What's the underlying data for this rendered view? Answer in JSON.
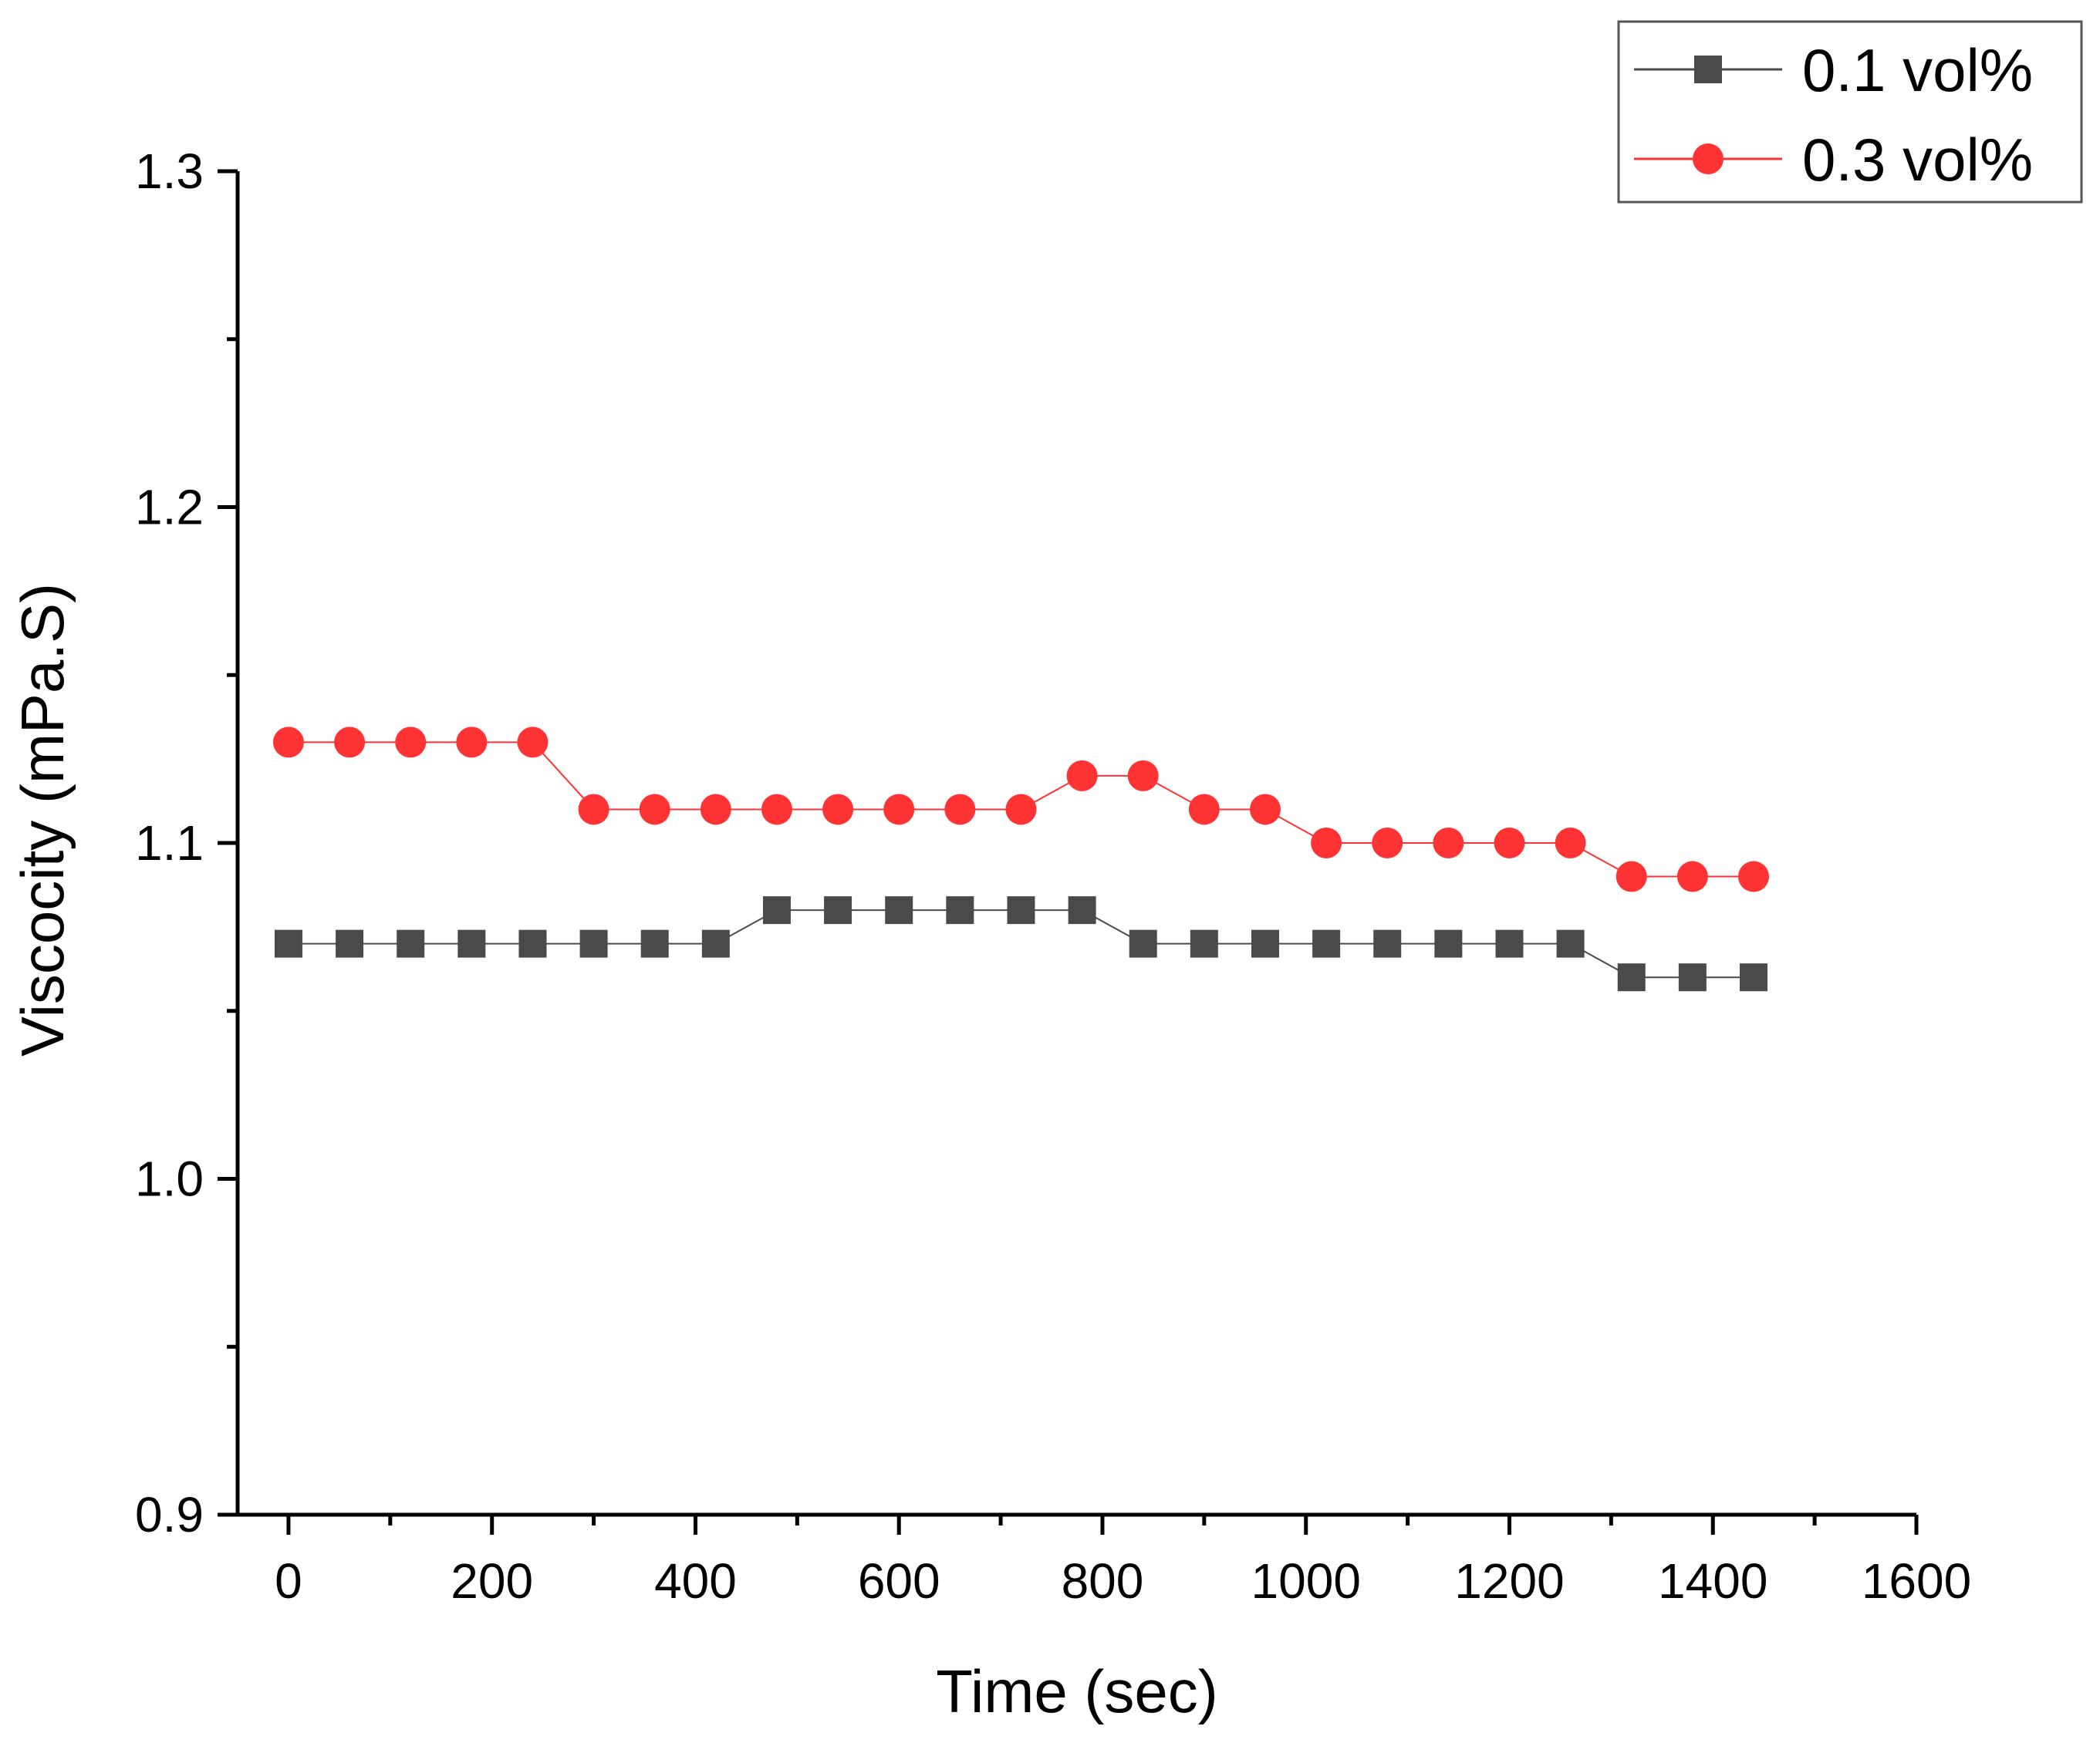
{
  "chart_data": {
    "type": "line",
    "title": "",
    "xlabel": "Time (sec)",
    "ylabel": "Viscocity (mPa.S)",
    "xlim": [
      -50,
      1600
    ],
    "ylim": [
      0.9,
      1.3
    ],
    "xticks": [
      0,
      200,
      400,
      600,
      800,
      1000,
      1200,
      1400,
      1600
    ],
    "xtick_labels": [
      "0",
      "200",
      "400",
      "600",
      "800",
      "1000",
      "1200",
      "1400",
      "1600"
    ],
    "yticks": [
      0.9,
      1.0,
      1.1,
      1.2,
      1.3
    ],
    "ytick_labels": [
      "0.9",
      "1.0",
      "1.1",
      "1.2",
      "1.3"
    ],
    "grid": false,
    "legend_position": "top-right",
    "x": [
      0,
      60,
      120,
      180,
      240,
      300,
      360,
      420,
      480,
      540,
      600,
      660,
      720,
      780,
      840,
      900,
      960,
      1020,
      1080,
      1140,
      1200,
      1260,
      1320,
      1380,
      1440
    ],
    "series": [
      {
        "name": "0.1 vol%",
        "marker": "square",
        "color": "#4a4a4a",
        "values": [
          1.07,
          1.07,
          1.07,
          1.07,
          1.07,
          1.07,
          1.07,
          1.07,
          1.08,
          1.08,
          1.08,
          1.08,
          1.08,
          1.08,
          1.07,
          1.07,
          1.07,
          1.07,
          1.07,
          1.07,
          1.07,
          1.07,
          1.06,
          1.06,
          1.06
        ]
      },
      {
        "name": "0.3 vol%",
        "marker": "circle",
        "color": "#ff3333",
        "values": [
          1.13,
          1.13,
          1.13,
          1.13,
          1.13,
          1.11,
          1.11,
          1.11,
          1.11,
          1.11,
          1.11,
          1.11,
          1.11,
          1.12,
          1.12,
          1.11,
          1.11,
          1.1,
          1.1,
          1.1,
          1.1,
          1.1,
          1.09,
          1.09,
          1.09
        ]
      }
    ]
  }
}
